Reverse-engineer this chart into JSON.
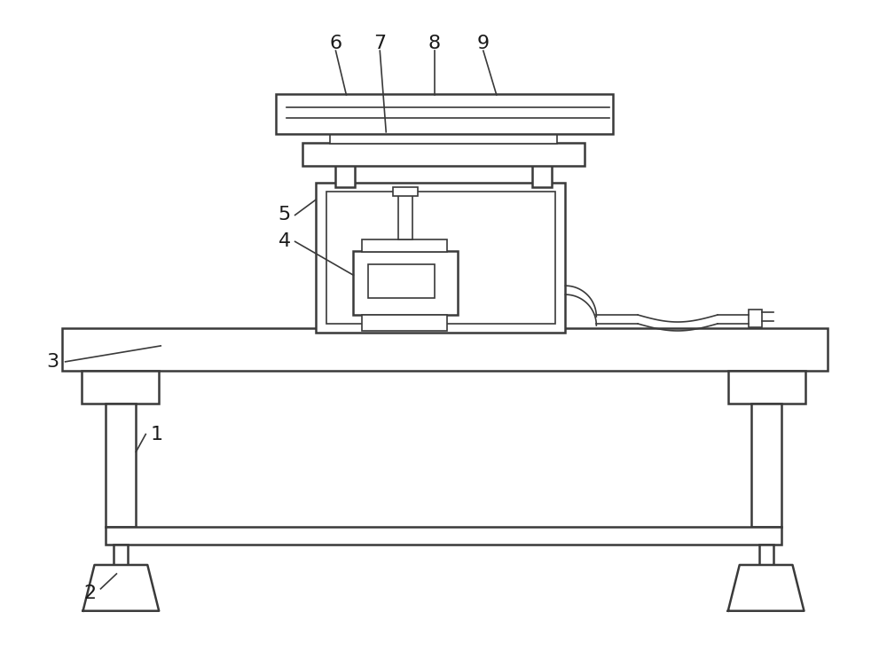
{
  "bg_color": "#ffffff",
  "line_color": "#3a3a3a",
  "label_color": "#1a1a1a",
  "label_fontsize": 16,
  "figsize": [
    10.0,
    7.34
  ],
  "dpi": 100
}
